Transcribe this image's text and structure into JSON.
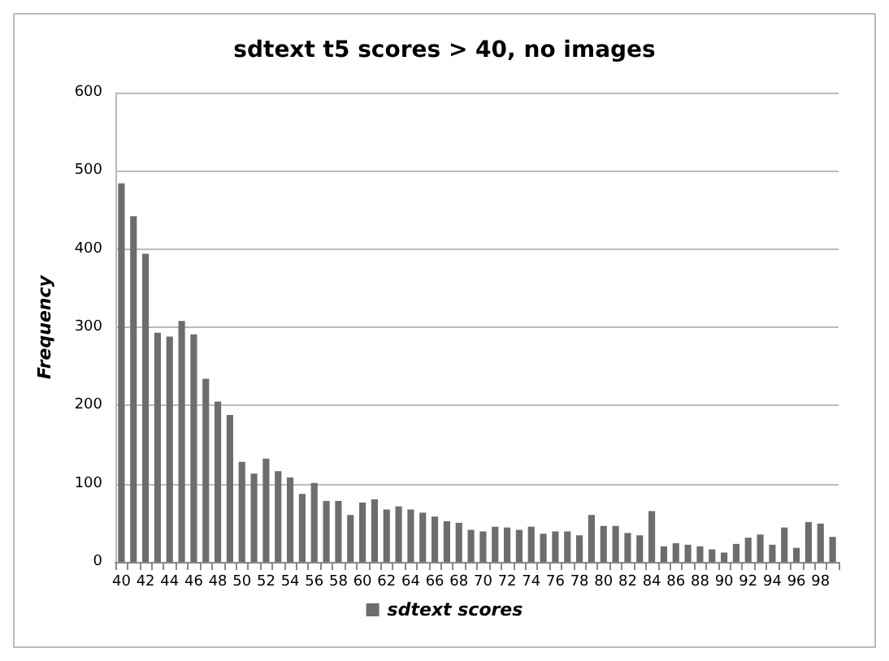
{
  "chart_data": {
    "type": "bar",
    "title": "sdtext t5 scores > 40, no images",
    "ylabel": "Frequency",
    "categories": [
      "40",
      null,
      "42",
      null,
      "44",
      null,
      "46",
      null,
      "48",
      null,
      "50",
      null,
      "52",
      null,
      "54",
      null,
      "56",
      null,
      "58",
      null,
      "60",
      null,
      "62",
      null,
      "64",
      null,
      "66",
      null,
      "68",
      null,
      "70",
      null,
      "72",
      null,
      "74",
      null,
      "76",
      null,
      "78",
      null,
      "80",
      null,
      "82",
      null,
      "84",
      null,
      "86",
      null,
      "88",
      null,
      "90",
      null,
      "92",
      null,
      "94",
      null,
      "96",
      null,
      "98",
      null
    ],
    "series": [
      {
        "name": "sdtext scores",
        "color": "#6d6d6d",
        "values": [
          484,
          442,
          394,
          293,
          288,
          308,
          291,
          234,
          205,
          188,
          128,
          113,
          132,
          116,
          108,
          87,
          101,
          78,
          78,
          60,
          76,
          80,
          67,
          71,
          67,
          63,
          58,
          52,
          50,
          41,
          39,
          45,
          44,
          41,
          45,
          36,
          39,
          39,
          34,
          60,
          46,
          46,
          37,
          34,
          65,
          20,
          24,
          22,
          20,
          16,
          12,
          23,
          31,
          35,
          22,
          44,
          18,
          51,
          49,
          32
        ]
      }
    ],
    "ylim": [
      0,
      600
    ],
    "yticks": [
      0,
      100,
      200,
      300,
      400,
      500,
      600
    ],
    "grid": "y",
    "legend": "bottom"
  }
}
